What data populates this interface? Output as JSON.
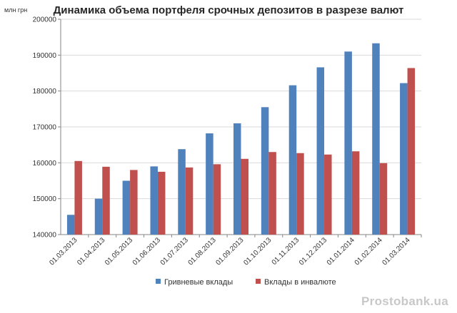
{
  "page": {
    "unit_label": "млн грн",
    "watermark": "Prostobank.ua"
  },
  "chart_data": {
    "type": "bar",
    "title": "Динамика объема портфеля срочных депозитов в разрезе валют",
    "xlabel": "",
    "ylabel": "млн грн",
    "ylim": [
      140000,
      200000
    ],
    "yticks": [
      140000,
      150000,
      160000,
      170000,
      180000,
      190000,
      200000
    ],
    "grid": true,
    "legend_position": "bottom",
    "categories": [
      "01.03.2013",
      "01.04.2013",
      "01.05.2013",
      "01.06.2013",
      "01.07.2013",
      "01.08.2013",
      "01.09.2013",
      "01.10.2013",
      "01.11.2013",
      "01.12.2013",
      "01.01.2014",
      "01.02.2014",
      "01.03.2014"
    ],
    "series": [
      {
        "name": "Гривневые вклады",
        "color": "#4F81BD",
        "values": [
          145500,
          150000,
          155000,
          159000,
          163800,
          168200,
          171000,
          175500,
          181600,
          186600,
          191000,
          193300,
          182200
        ]
      },
      {
        "name": "Вклады в инвалюте",
        "color": "#C0504D",
        "values": [
          160500,
          158900,
          158000,
          157500,
          158700,
          159600,
          161100,
          163000,
          162700,
          162300,
          163200,
          159900,
          186400
        ]
      }
    ]
  }
}
